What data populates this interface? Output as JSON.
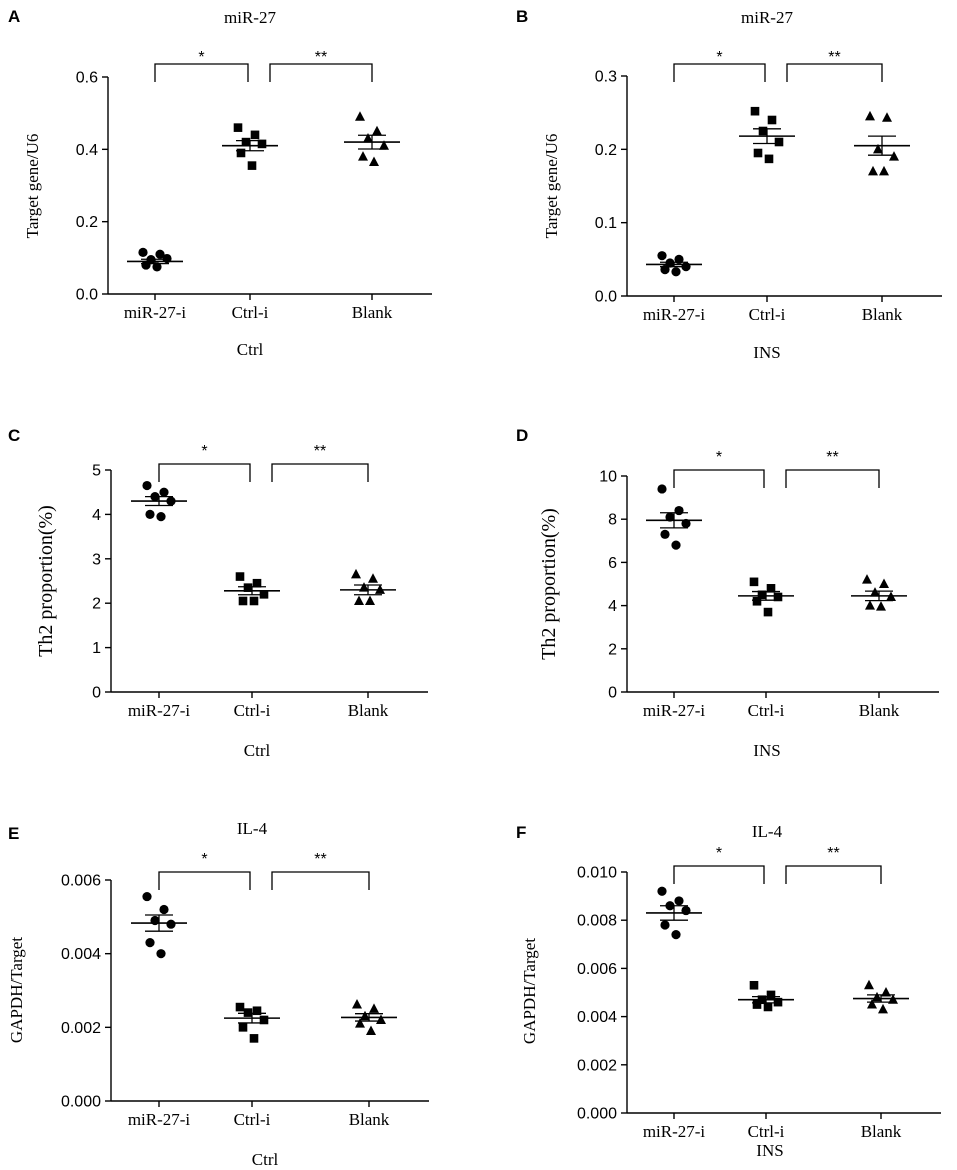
{
  "chart_data": [
    {
      "panel": "A",
      "type": "scatter",
      "title": "miR-27",
      "xlabel": "Ctrl",
      "ylabel": "Target gene/U6",
      "ylim": [
        0,
        0.6
      ],
      "yticks": [
        "0.0",
        "0.2",
        "0.4",
        "0.6"
      ],
      "categories": [
        "miR-27-i",
        "Ctrl-i",
        "Blank"
      ],
      "markers": [
        "circle",
        "square",
        "triangle"
      ],
      "series": [
        {
          "name": "miR-27-i",
          "values": [
            0.115,
            0.11,
            0.095,
            0.098,
            0.08,
            0.075
          ],
          "mean": 0.09,
          "sem": 0.006
        },
        {
          "name": "Ctrl-i",
          "values": [
            0.46,
            0.44,
            0.42,
            0.415,
            0.39,
            0.355
          ],
          "mean": 0.41,
          "sem": 0.014
        },
        {
          "name": "Blank",
          "values": [
            0.49,
            0.45,
            0.43,
            0.41,
            0.38,
            0.365
          ],
          "mean": 0.42,
          "sem": 0.019
        }
      ],
      "comparisons": [
        {
          "from": "miR-27-i",
          "to": "Ctrl-i",
          "label": "*",
          "y": 0.61
        },
        {
          "from": "Ctrl-i",
          "to": "Blank",
          "label": "**",
          "y": 0.61
        }
      ]
    },
    {
      "panel": "B",
      "type": "scatter",
      "title": "miR-27",
      "xlabel": "INS",
      "ylabel": "Target gene/U6",
      "ylim": [
        0,
        0.3
      ],
      "yticks": [
        "0.0",
        "0.1",
        "0.2",
        "0.3"
      ],
      "categories": [
        "miR-27-i",
        "Ctrl-i",
        "Blank"
      ],
      "markers": [
        "circle",
        "square",
        "triangle"
      ],
      "series": [
        {
          "name": "miR-27-i",
          "values": [
            0.055,
            0.05,
            0.045,
            0.04,
            0.036,
            0.033
          ],
          "mean": 0.043,
          "sem": 0.003
        },
        {
          "name": "Ctrl-i",
          "values": [
            0.252,
            0.24,
            0.225,
            0.21,
            0.195,
            0.187
          ],
          "mean": 0.218,
          "sem": 0.01
        },
        {
          "name": "Blank",
          "values": [
            0.245,
            0.243,
            0.2,
            0.19,
            0.17,
            0.17
          ],
          "mean": 0.205,
          "sem": 0.013
        }
      ],
      "comparisons": [
        {
          "from": "miR-27-i",
          "to": "Ctrl-i",
          "label": "*",
          "y": 0.31
        },
        {
          "from": "Ctrl-i",
          "to": "Blank",
          "label": "**",
          "y": 0.31
        }
      ]
    },
    {
      "panel": "C",
      "type": "scatter",
      "title": "",
      "xlabel": "Ctrl",
      "ylabel": "Th2 proportion(%)",
      "ylim": [
        0,
        5
      ],
      "yticks": [
        "0",
        "1",
        "2",
        "3",
        "4",
        "5"
      ],
      "categories": [
        "miR-27-i",
        "Ctrl-i",
        "Blank"
      ],
      "markers": [
        "circle",
        "square",
        "triangle"
      ],
      "series": [
        {
          "name": "miR-27-i",
          "values": [
            4.65,
            4.5,
            4.4,
            4.3,
            4.0,
            3.95
          ],
          "mean": 4.3,
          "sem": 0.1
        },
        {
          "name": "Ctrl-i",
          "values": [
            2.6,
            2.45,
            2.35,
            2.2,
            2.05,
            2.05
          ],
          "mean": 2.28,
          "sem": 0.09
        },
        {
          "name": "Blank",
          "values": [
            2.65,
            2.55,
            2.35,
            2.3,
            2.05,
            2.05
          ],
          "mean": 2.3,
          "sem": 0.11
        }
      ],
      "comparisons": [
        {
          "from": "miR-27-i",
          "to": "Ctrl-i",
          "label": "*",
          "y": 5.0
        },
        {
          "from": "Ctrl-i",
          "to": "Blank",
          "label": "**",
          "y": 5.0
        }
      ]
    },
    {
      "panel": "D",
      "type": "scatter",
      "title": "",
      "xlabel": "INS",
      "ylabel": "Th2 proportion(%)",
      "ylim": [
        0,
        10
      ],
      "yticks": [
        "0",
        "2",
        "4",
        "6",
        "8",
        "10"
      ],
      "categories": [
        "miR-27-i",
        "Ctrl-i",
        "Blank"
      ],
      "markers": [
        "circle",
        "square",
        "triangle"
      ],
      "series": [
        {
          "name": "miR-27-i",
          "values": [
            9.4,
            8.4,
            8.1,
            7.8,
            7.3,
            6.8
          ],
          "mean": 7.95,
          "sem": 0.35
        },
        {
          "name": "Ctrl-i",
          "values": [
            5.1,
            4.8,
            4.5,
            4.4,
            4.2,
            3.7
          ],
          "mean": 4.45,
          "sem": 0.2
        },
        {
          "name": "Blank",
          "values": [
            5.2,
            5.0,
            4.6,
            4.4,
            4.0,
            3.95
          ],
          "mean": 4.45,
          "sem": 0.22
        }
      ],
      "comparisons": [
        {
          "from": "miR-27-i",
          "to": "Ctrl-i",
          "label": "*",
          "y": 9.9
        },
        {
          "from": "Ctrl-i",
          "to": "Blank",
          "label": "**",
          "y": 9.9
        }
      ]
    },
    {
      "panel": "E",
      "type": "scatter",
      "title": "IL-4",
      "xlabel": "Ctrl",
      "ylabel": "GAPDH/Target",
      "ylim": [
        0,
        0.006
      ],
      "yticks": [
        "0.000",
        "0.002",
        "0.004",
        "0.006"
      ],
      "categories": [
        "miR-27-i",
        "Ctrl-i",
        "Blank"
      ],
      "markers": [
        "circle",
        "square",
        "triangle"
      ],
      "series": [
        {
          "name": "miR-27-i",
          "values": [
            0.00555,
            0.0052,
            0.0049,
            0.0048,
            0.0043,
            0.004
          ],
          "mean": 0.00483,
          "sem": 0.00022
        },
        {
          "name": "Ctrl-i",
          "values": [
            0.00255,
            0.00245,
            0.0024,
            0.0022,
            0.002,
            0.0017
          ],
          "mean": 0.00225,
          "sem": 0.00013
        },
        {
          "name": "Blank",
          "values": [
            0.00262,
            0.0025,
            0.0023,
            0.0022,
            0.0021,
            0.0019
          ],
          "mean": 0.00227,
          "sem": 0.0001
        }
      ],
      "comparisons": [
        {
          "from": "miR-27-i",
          "to": "Ctrl-i",
          "label": "*",
          "y": 0.00595
        },
        {
          "from": "Ctrl-i",
          "to": "Blank",
          "label": "**",
          "y": 0.00595
        }
      ]
    },
    {
      "panel": "F",
      "type": "scatter",
      "title": "IL-4",
      "xlabel": "INS",
      "ylabel": "GAPDH/Target",
      "ylim": [
        0,
        0.01
      ],
      "yticks": [
        "0.000",
        "0.002",
        "0.004",
        "0.006",
        "0.008",
        "0.010"
      ],
      "categories": [
        "miR-27-i",
        "Ctrl-i",
        "Blank"
      ],
      "markers": [
        "circle",
        "square",
        "triangle"
      ],
      "series": [
        {
          "name": "miR-27-i",
          "values": [
            0.0092,
            0.0088,
            0.0086,
            0.0084,
            0.0078,
            0.0074
          ],
          "mean": 0.0083,
          "sem": 0.0003
        },
        {
          "name": "Ctrl-i",
          "values": [
            0.0053,
            0.0049,
            0.0047,
            0.0046,
            0.0045,
            0.0044
          ],
          "mean": 0.0047,
          "sem": 0.00013
        },
        {
          "name": "Blank",
          "values": [
            0.0053,
            0.005,
            0.0048,
            0.0047,
            0.0045,
            0.0043
          ],
          "mean": 0.00475,
          "sem": 0.00015
        }
      ],
      "comparisons": [
        {
          "from": "miR-27-i",
          "to": "Ctrl-i",
          "label": "*",
          "y": 0.01
        },
        {
          "from": "Ctrl-i",
          "to": "Blank",
          "label": "**",
          "y": 0.01
        }
      ]
    }
  ]
}
